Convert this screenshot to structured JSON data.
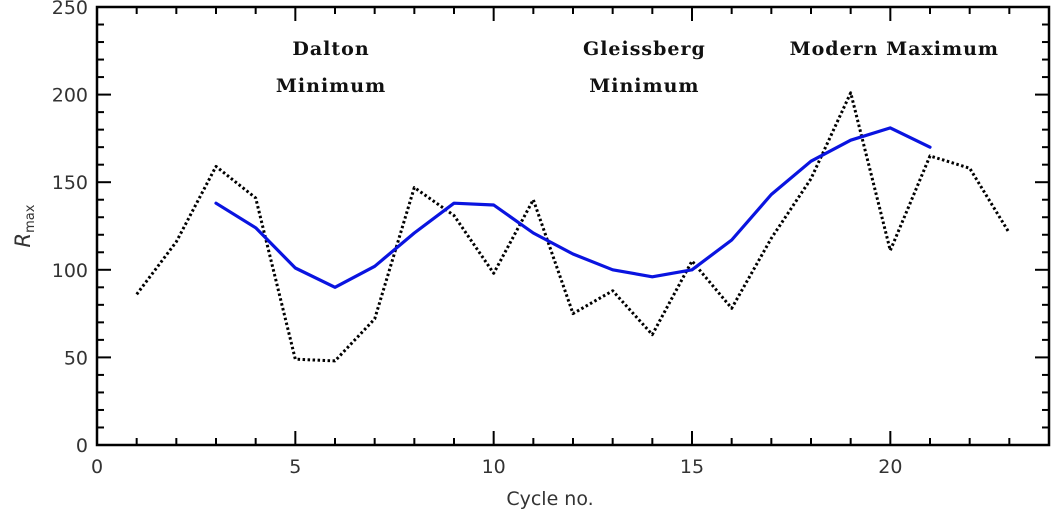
{
  "chart_data": {
    "type": "line",
    "xlabel": "Cycle no.",
    "ylabel": "R",
    "ylabel_sub": "max",
    "xlim": [
      0,
      24
    ],
    "ylim": [
      0,
      250
    ],
    "x_ticks": [
      "0",
      "5",
      "10",
      "15",
      "20"
    ],
    "y_ticks": [
      "0",
      "50",
      "100",
      "150",
      "200",
      "250"
    ],
    "annotations": [
      {
        "id": "dalton",
        "lines": [
          "Dalton",
          "Minimum"
        ],
        "x": 5.9
      },
      {
        "id": "gleissberg",
        "lines": [
          "Gleissberg",
          "Minimum"
        ],
        "x": 13.8
      },
      {
        "id": "modern",
        "lines": [
          "Modern Maximum"
        ],
        "x": 20.1
      }
    ],
    "series": [
      {
        "style": "dotted",
        "color": "#000000",
        "x": [
          1,
          2,
          3,
          4,
          5,
          6,
          7,
          8,
          9,
          10,
          11,
          12,
          13,
          14,
          15,
          16,
          17,
          18,
          19,
          20,
          21,
          22,
          23
        ],
        "y": [
          86,
          116,
          159,
          141,
          49,
          48,
          72,
          147,
          131,
          98,
          140,
          75,
          88,
          63,
          105,
          78,
          118,
          152,
          201,
          111,
          165,
          158,
          121
        ]
      },
      {
        "style": "solid",
        "color": "#0a14e0",
        "x": [
          3,
          4,
          5,
          6,
          7,
          8,
          9,
          10,
          11,
          12,
          13,
          14,
          15,
          16,
          17,
          18,
          19,
          20,
          21
        ],
        "y": [
          138,
          124,
          101,
          90,
          102,
          121,
          138,
          137,
          121,
          109,
          100,
          96,
          100,
          117,
          143,
          162,
          174,
          181,
          170
        ]
      }
    ]
  }
}
